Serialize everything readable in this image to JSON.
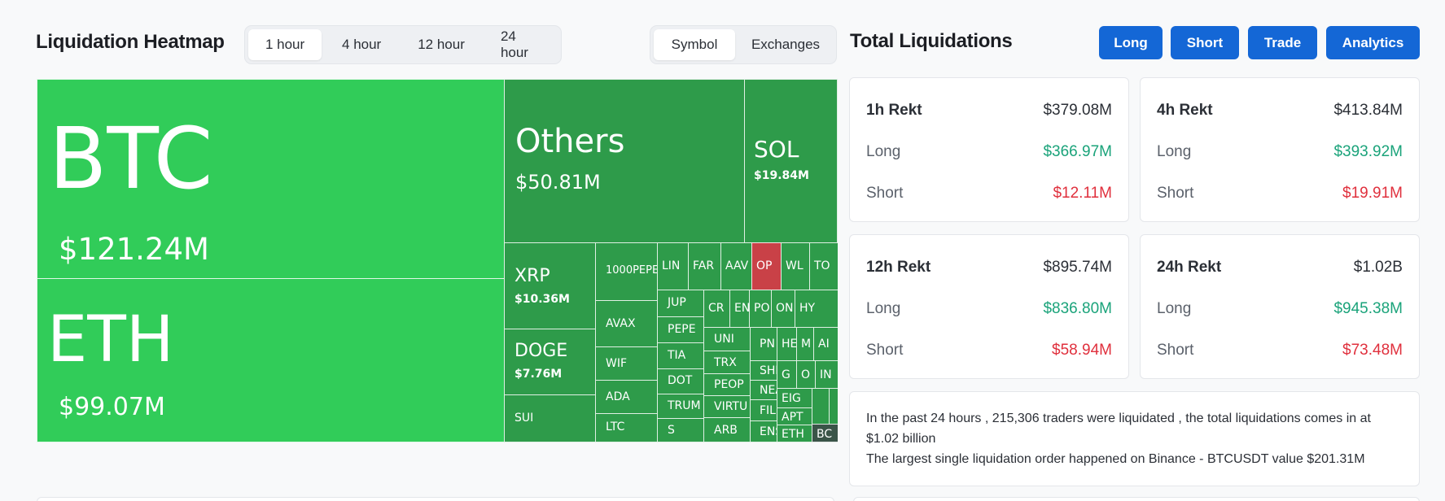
{
  "heatmap": {
    "title": "Liquidation Heatmap",
    "range_options": [
      "1 hour",
      "4 hour",
      "12 hour",
      "24 hour"
    ],
    "selected_range": "1 hour",
    "view_options": [
      "Symbol",
      "Exchanges"
    ],
    "selected_view": "Symbol",
    "tiles": {
      "btc": {
        "symbol": "BTC",
        "amount": "$121.24M"
      },
      "eth": {
        "symbol": "ETH",
        "amount": "$99.07M"
      },
      "others": {
        "symbol": "Others",
        "amount": "$50.81M"
      },
      "sol": {
        "symbol": "SOL",
        "amount": "$19.84M"
      },
      "xrp": {
        "symbol": "XRP",
        "amount": "$10.36M"
      },
      "doge": {
        "symbol": "DOGE",
        "amount": "$7.76M"
      },
      "sui": {
        "symbol": "SUI"
      },
      "pepe1000": {
        "symbol": "1000PEPE"
      },
      "avax": {
        "symbol": "AVAX"
      },
      "wif": {
        "symbol": "WIF"
      },
      "ada": {
        "symbol": "ADA"
      },
      "ltc": {
        "symbol": "LTC"
      },
      "link": {
        "symbol": "LIN"
      },
      "far": {
        "symbol": "FAR"
      },
      "aave": {
        "symbol": "AAV"
      },
      "op": {
        "symbol": "OP"
      },
      "wl": {
        "symbol": "WL"
      },
      "ton": {
        "symbol": "TO"
      },
      "jup": {
        "symbol": "JUP"
      },
      "pepe": {
        "symbol": "PEPE"
      },
      "tia": {
        "symbol": "TIA"
      },
      "dot": {
        "symbol": "DOT"
      },
      "trump": {
        "symbol": "TRUM"
      },
      "s": {
        "symbol": "S"
      },
      "cr": {
        "symbol": "CR"
      },
      "en": {
        "symbol": "EN"
      },
      "po": {
        "symbol": "PO"
      },
      "on": {
        "symbol": "ON"
      },
      "hy": {
        "symbol": "HY"
      },
      "uni": {
        "symbol": "UNI"
      },
      "trx": {
        "symbol": "TRX"
      },
      "peop": {
        "symbol": "PEOP"
      },
      "virtu": {
        "symbol": "VIRTU"
      },
      "arb": {
        "symbol": "ARB"
      },
      "pn": {
        "symbol": "PN"
      },
      "he": {
        "symbol": "HE"
      },
      "m": {
        "symbol": "M"
      },
      "ai": {
        "symbol": "AI"
      },
      "shi": {
        "symbol": "SHI"
      },
      "g": {
        "symbol": "G"
      },
      "o": {
        "symbol": "O"
      },
      "in": {
        "symbol": "IN"
      },
      "nea": {
        "symbol": "NEA"
      },
      "eig": {
        "symbol": "EIG"
      },
      "fil": {
        "symbol": "FIL"
      },
      "apt": {
        "symbol": "APT"
      },
      "ens": {
        "symbol": "ENS"
      },
      "eth2": {
        "symbol": "ETH"
      },
      "bc": {
        "symbol": "BC"
      }
    }
  },
  "liquidations": {
    "title": "Total Liquidations",
    "buttons": [
      "Long",
      "Short",
      "Trade",
      "Analytics"
    ],
    "cards": [
      {
        "label": "1h Rekt",
        "total": "$379.08M",
        "long_label": "Long",
        "long": "$366.97M",
        "short_label": "Short",
        "short": "$12.11M"
      },
      {
        "label": "4h Rekt",
        "total": "$413.84M",
        "long_label": "Long",
        "long": "$393.92M",
        "short_label": "Short",
        "short": "$19.91M"
      },
      {
        "label": "12h Rekt",
        "total": "$895.74M",
        "long_label": "Long",
        "long": "$836.80M",
        "short_label": "Short",
        "short": "$58.94M"
      },
      {
        "label": "24h Rekt",
        "total": "$1.02B",
        "long_label": "Long",
        "long": "$945.38M",
        "short_label": "Short",
        "short": "$73.48M"
      }
    ],
    "summary_line1": "In the past 24 hours , 215,306 traders were liquidated , the total liquidations comes in at $1.02 billion",
    "summary_line2": "The largest single liquidation order happened on Binance - BTCUSDT value $201.31M"
  },
  "colors": {
    "accent": "#1467d6",
    "long": "#1aa37a",
    "short": "#e0303d",
    "tile_big": "#31cc59",
    "tile": "#2e9b4a",
    "tile_red": "#c94147"
  }
}
